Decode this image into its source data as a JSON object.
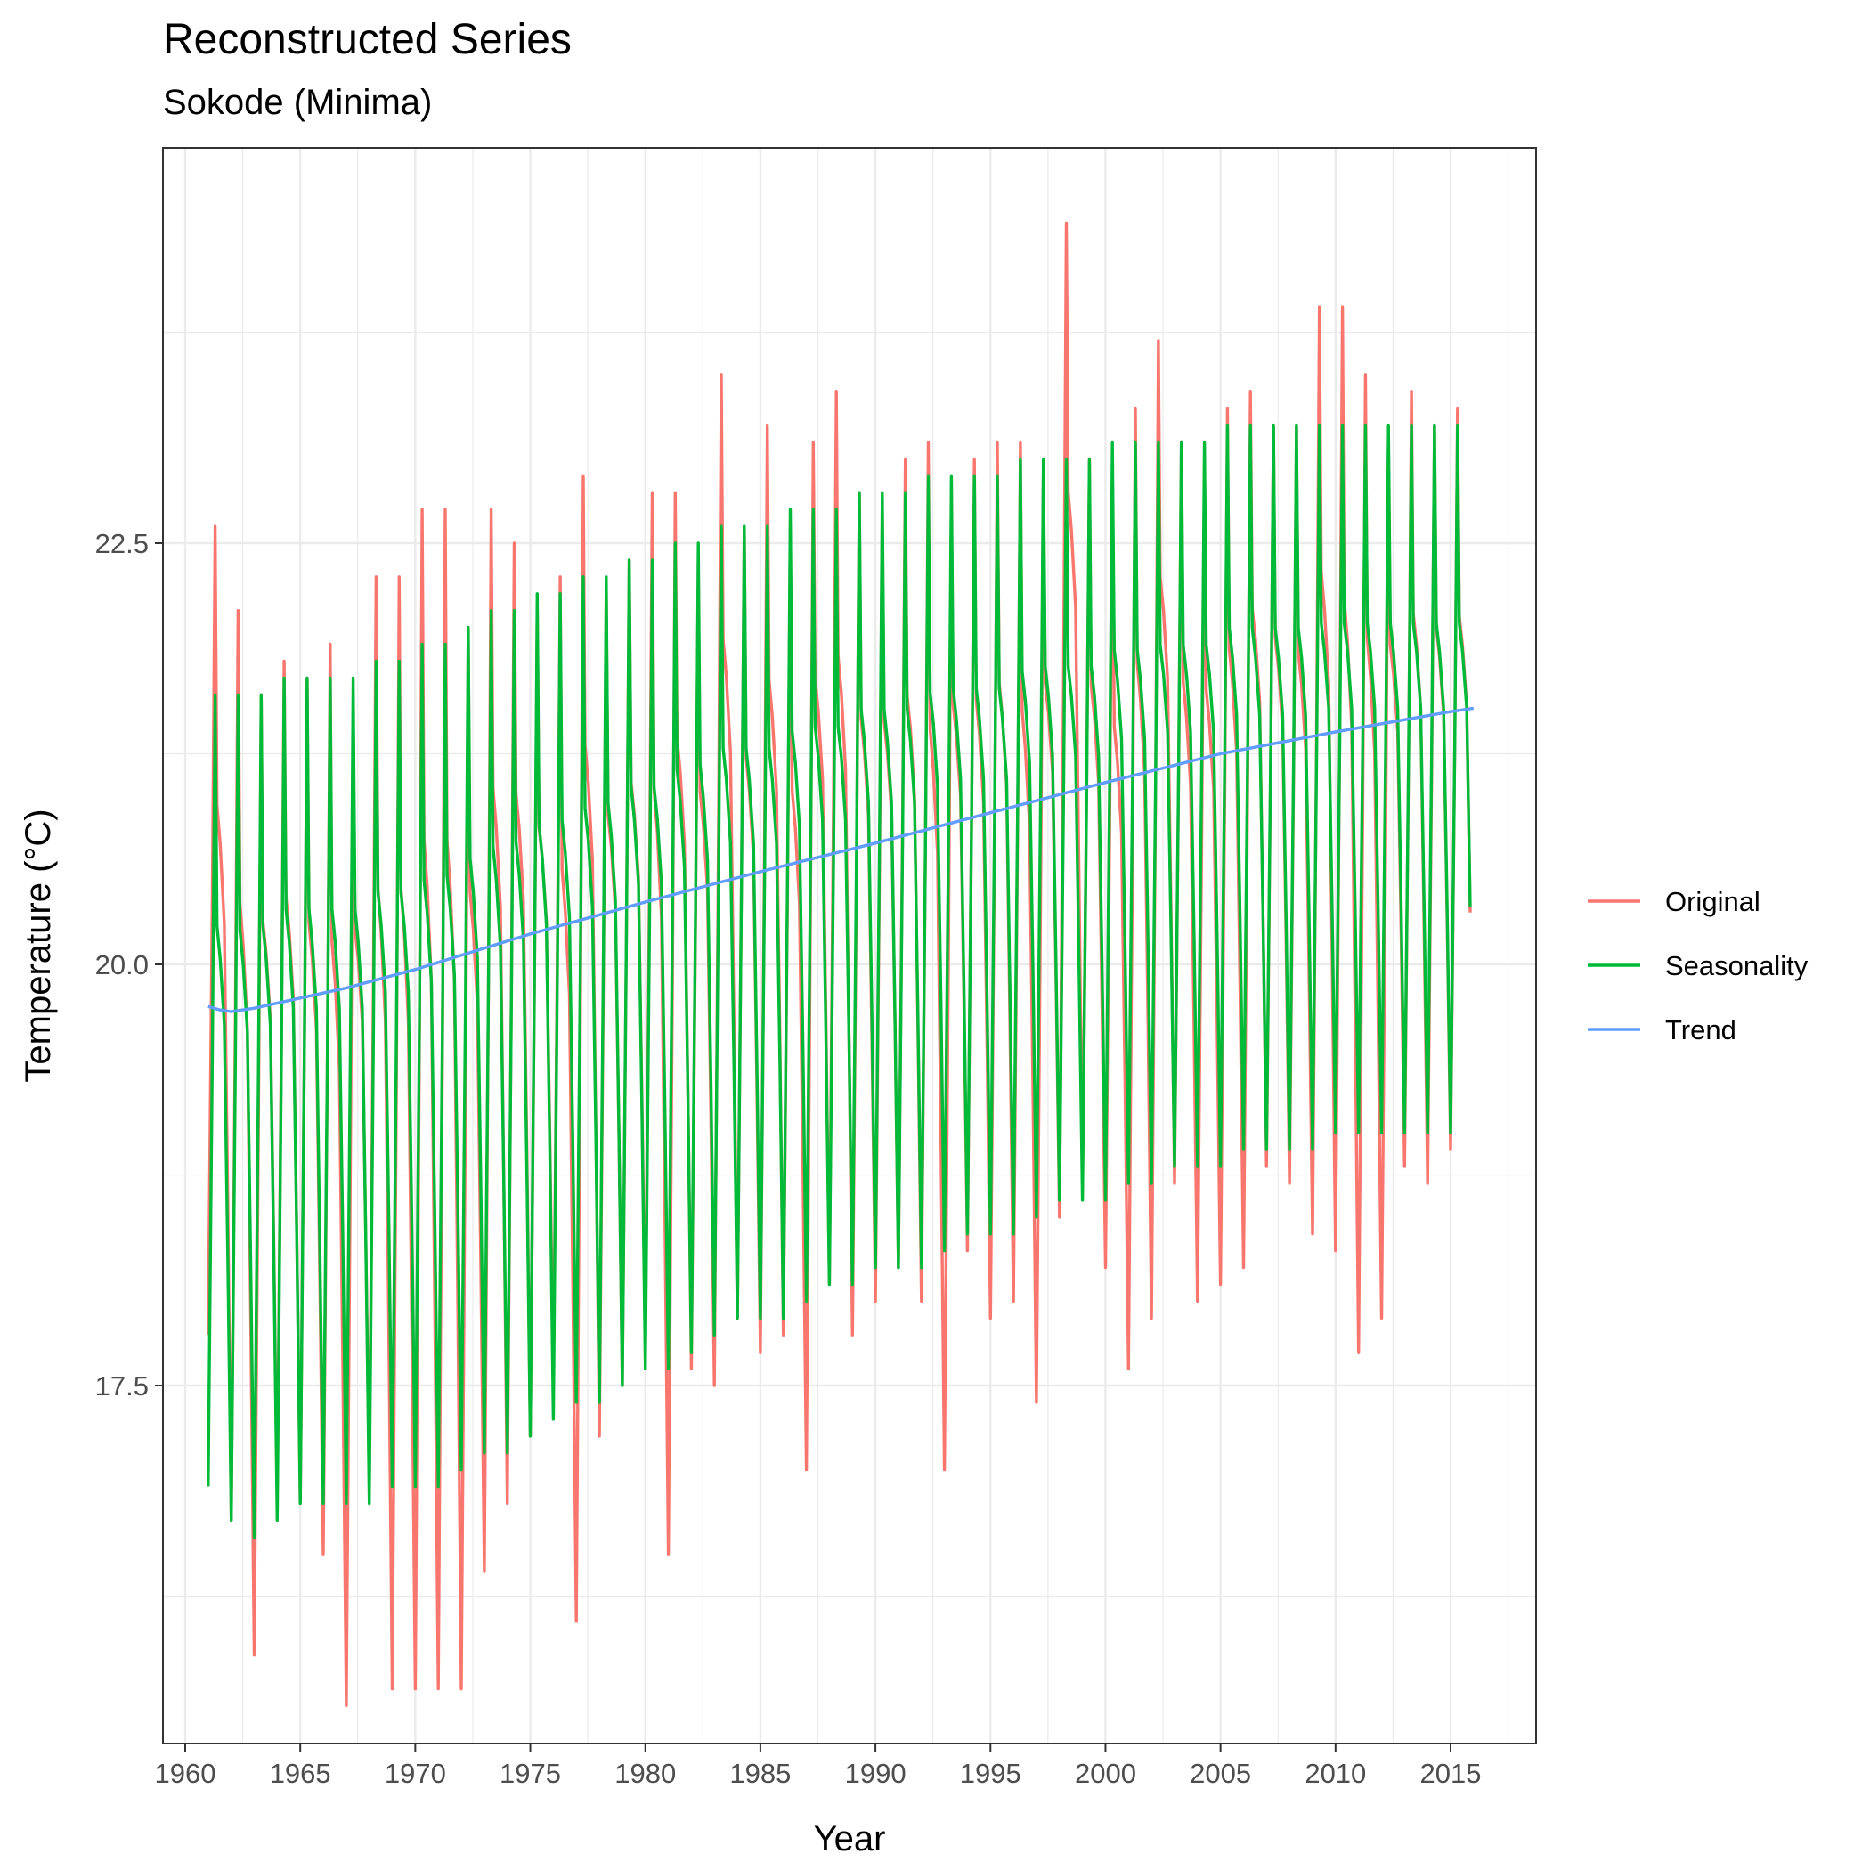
{
  "chart_data": {
    "type": "line",
    "title": "Reconstructed Series",
    "subtitle": "Sokode (Minima)",
    "xlabel": "Year",
    "ylabel": "Temperature (°C)",
    "xlim": [
      1959.3,
      1960.0
    ],
    "ylim": [
      14.8,
      24.5
    ],
    "x_ticks": [
      1960,
      1965,
      1970,
      1975,
      1980,
      1985,
      1990,
      1995,
      2000,
      2005,
      2010,
      2015
    ],
    "x_tick_labels": [
      "1960",
      "1965",
      "1970",
      "1975",
      "1980",
      "1985",
      "1990",
      "1995",
      "2000",
      "2005",
      "2010",
      "2015"
    ],
    "y_ticks": [
      17.5,
      20.0,
      22.5
    ],
    "y_tick_labels": [
      "17.5",
      "20.0",
      "22.5"
    ],
    "grid": true,
    "legend_position": "right",
    "series": [
      {
        "name": "Original",
        "color": "#F8766D",
        "seasonal_min": [
          [
            1961.0,
            17.8
          ],
          [
            1962.0,
            16.7
          ],
          [
            1963.0,
            15.9
          ],
          [
            1964.0,
            16.8
          ],
          [
            1965.0,
            16.8
          ],
          [
            1966.0,
            16.5
          ],
          [
            1967.0,
            15.6
          ],
          [
            1968.0,
            16.9
          ],
          [
            1969.0,
            15.7
          ],
          [
            1970.0,
            15.7
          ],
          [
            1971.0,
            15.7
          ],
          [
            1972.0,
            15.7
          ],
          [
            1973.0,
            16.4
          ],
          [
            1974.0,
            16.8
          ],
          [
            1975.0,
            17.2
          ],
          [
            1976.0,
            17.5
          ],
          [
            1977.0,
            16.1
          ],
          [
            1978.0,
            17.2
          ],
          [
            1979.0,
            17.5
          ],
          [
            1980.0,
            17.7
          ],
          [
            1981.0,
            16.5
          ],
          [
            1982.0,
            17.6
          ],
          [
            1983.0,
            17.5
          ],
          [
            1984.0,
            17.9
          ],
          [
            1985.0,
            17.7
          ],
          [
            1986.0,
            17.8
          ],
          [
            1987.0,
            17.0
          ],
          [
            1988.0,
            18.1
          ],
          [
            1989.0,
            17.8
          ],
          [
            1990.0,
            18.0
          ],
          [
            1991.0,
            18.2
          ],
          [
            1992.0,
            18.0
          ],
          [
            1993.0,
            17.0
          ],
          [
            1994.0,
            18.3
          ],
          [
            1995.0,
            17.9
          ],
          [
            1996.0,
            18.0
          ],
          [
            1997.0,
            17.4
          ],
          [
            1998.0,
            18.5
          ],
          [
            1999.0,
            18.7
          ],
          [
            2000.0,
            18.2
          ],
          [
            2001.0,
            17.6
          ],
          [
            2002.0,
            17.9
          ],
          [
            2003.0,
            18.7
          ],
          [
            2004.0,
            18.0
          ],
          [
            2005.0,
            18.1
          ],
          [
            2006.0,
            18.2
          ],
          [
            2007.0,
            18.8
          ],
          [
            2008.0,
            18.7
          ],
          [
            2009.0,
            18.4
          ],
          [
            2010.0,
            18.3
          ],
          [
            2011.0,
            17.7
          ],
          [
            2012.0,
            17.9
          ],
          [
            2013.0,
            18.8
          ],
          [
            2014.0,
            18.7
          ],
          [
            2015.0,
            18.9
          ]
        ],
        "seasonal_max": [
          [
            1961.3,
            22.6
          ],
          [
            1962.3,
            22.1
          ],
          [
            1963.3,
            21.6
          ],
          [
            1964.3,
            21.8
          ],
          [
            1965.3,
            21.7
          ],
          [
            1966.3,
            21.9
          ],
          [
            1967.3,
            21.5
          ],
          [
            1968.3,
            22.3
          ],
          [
            1969.3,
            22.3
          ],
          [
            1970.3,
            22.7
          ],
          [
            1971.3,
            22.7
          ],
          [
            1972.3,
            22.0
          ],
          [
            1973.3,
            22.7
          ],
          [
            1974.3,
            22.5
          ],
          [
            1975.3,
            22.1
          ],
          [
            1976.3,
            22.3
          ],
          [
            1977.3,
            22.9
          ],
          [
            1978.3,
            22.2
          ],
          [
            1979.3,
            22.4
          ],
          [
            1980.3,
            22.8
          ],
          [
            1981.3,
            22.8
          ],
          [
            1982.3,
            22.4
          ],
          [
            1983.3,
            23.5
          ],
          [
            1984.3,
            22.6
          ],
          [
            1985.3,
            23.2
          ],
          [
            1986.3,
            22.6
          ],
          [
            1987.3,
            23.1
          ],
          [
            1988.3,
            23.4
          ],
          [
            1989.3,
            22.8
          ],
          [
            1990.3,
            22.7
          ],
          [
            1991.3,
            23.0
          ],
          [
            1992.3,
            23.1
          ],
          [
            1993.3,
            22.8
          ],
          [
            1994.3,
            23.0
          ],
          [
            1995.3,
            23.1
          ],
          [
            1996.3,
            23.1
          ],
          [
            1997.3,
            22.9
          ],
          [
            1998.3,
            24.4
          ],
          [
            1999.3,
            23.0
          ],
          [
            2000.3,
            22.9
          ],
          [
            2001.3,
            23.3
          ],
          [
            2002.3,
            23.7
          ],
          [
            2003.3,
            23.1
          ],
          [
            2004.3,
            23.0
          ],
          [
            2005.3,
            23.3
          ],
          [
            2006.3,
            23.4
          ],
          [
            2007.3,
            23.2
          ],
          [
            2008.3,
            23.2
          ],
          [
            2009.3,
            23.9
          ],
          [
            2010.3,
            23.9
          ],
          [
            2011.3,
            23.5
          ],
          [
            2012.3,
            23.1
          ],
          [
            2013.3,
            23.4
          ],
          [
            2014.3,
            23.2
          ],
          [
            2015.3,
            23.3
          ]
        ]
      },
      {
        "name": "Seasonality",
        "color": "#00BA38",
        "seasonal_min": [
          [
            1961.0,
            16.9
          ],
          [
            1962.0,
            16.7
          ],
          [
            1963.0,
            16.6
          ],
          [
            1964.0,
            16.7
          ],
          [
            1965.0,
            16.8
          ],
          [
            1966.0,
            16.8
          ],
          [
            1967.0,
            16.8
          ],
          [
            1968.0,
            16.8
          ],
          [
            1969.0,
            16.9
          ],
          [
            1970.0,
            16.9
          ],
          [
            1971.0,
            16.9
          ],
          [
            1972.0,
            17.0
          ],
          [
            1973.0,
            17.1
          ],
          [
            1974.0,
            17.1
          ],
          [
            1975.0,
            17.2
          ],
          [
            1976.0,
            17.3
          ],
          [
            1977.0,
            17.4
          ],
          [
            1978.0,
            17.4
          ],
          [
            1979.0,
            17.5
          ],
          [
            1980.0,
            17.6
          ],
          [
            1981.0,
            17.6
          ],
          [
            1982.0,
            17.7
          ],
          [
            1983.0,
            17.8
          ],
          [
            1984.0,
            17.9
          ],
          [
            1985.0,
            17.9
          ],
          [
            1986.0,
            17.9
          ],
          [
            1987.0,
            18.0
          ],
          [
            1988.0,
            18.1
          ],
          [
            1989.0,
            18.1
          ],
          [
            1990.0,
            18.2
          ],
          [
            1991.0,
            18.2
          ],
          [
            1992.0,
            18.2
          ],
          [
            1993.0,
            18.3
          ],
          [
            1994.0,
            18.4
          ],
          [
            1995.0,
            18.4
          ],
          [
            1996.0,
            18.4
          ],
          [
            1997.0,
            18.5
          ],
          [
            1998.0,
            18.6
          ],
          [
            1999.0,
            18.6
          ],
          [
            2000.0,
            18.6
          ],
          [
            2001.0,
            18.7
          ],
          [
            2002.0,
            18.7
          ],
          [
            2003.0,
            18.8
          ],
          [
            2004.0,
            18.8
          ],
          [
            2005.0,
            18.8
          ],
          [
            2006.0,
            18.9
          ],
          [
            2007.0,
            18.9
          ],
          [
            2008.0,
            18.9
          ],
          [
            2009.0,
            18.9
          ],
          [
            2010.0,
            19.0
          ],
          [
            2011.0,
            19.0
          ],
          [
            2012.0,
            19.0
          ],
          [
            2013.0,
            19.0
          ],
          [
            2014.0,
            19.0
          ],
          [
            2015.0,
            19.0
          ]
        ],
        "seasonal_max": [
          [
            1961.3,
            21.6
          ],
          [
            1962.3,
            21.6
          ],
          [
            1963.3,
            21.6
          ],
          [
            1964.3,
            21.7
          ],
          [
            1965.3,
            21.7
          ],
          [
            1966.3,
            21.7
          ],
          [
            1967.3,
            21.7
          ],
          [
            1968.3,
            21.8
          ],
          [
            1969.3,
            21.8
          ],
          [
            1970.3,
            21.9
          ],
          [
            1971.3,
            21.9
          ],
          [
            1972.3,
            22.0
          ],
          [
            1973.3,
            22.1
          ],
          [
            1974.3,
            22.1
          ],
          [
            1975.3,
            22.2
          ],
          [
            1976.3,
            22.2
          ],
          [
            1977.3,
            22.3
          ],
          [
            1978.3,
            22.3
          ],
          [
            1979.3,
            22.4
          ],
          [
            1980.3,
            22.4
          ],
          [
            1981.3,
            22.5
          ],
          [
            1982.3,
            22.5
          ],
          [
            1983.3,
            22.6
          ],
          [
            1984.3,
            22.6
          ],
          [
            1985.3,
            22.6
          ],
          [
            1986.3,
            22.7
          ],
          [
            1987.3,
            22.7
          ],
          [
            1988.3,
            22.7
          ],
          [
            1989.3,
            22.8
          ],
          [
            1990.3,
            22.8
          ],
          [
            1991.3,
            22.8
          ],
          [
            1992.3,
            22.9
          ],
          [
            1993.3,
            22.9
          ],
          [
            1994.3,
            22.9
          ],
          [
            1995.3,
            22.9
          ],
          [
            1996.3,
            23.0
          ],
          [
            1997.3,
            23.0
          ],
          [
            1998.3,
            23.0
          ],
          [
            1999.3,
            23.0
          ],
          [
            2000.3,
            23.1
          ],
          [
            2001.3,
            23.1
          ],
          [
            2002.3,
            23.1
          ],
          [
            2003.3,
            23.1
          ],
          [
            2004.3,
            23.1
          ],
          [
            2005.3,
            23.2
          ],
          [
            2006.3,
            23.2
          ],
          [
            2007.3,
            23.2
          ],
          [
            2008.3,
            23.2
          ],
          [
            2009.3,
            23.2
          ],
          [
            2010.3,
            23.2
          ],
          [
            2011.3,
            23.2
          ],
          [
            2012.3,
            23.2
          ],
          [
            2013.3,
            23.2
          ],
          [
            2014.3,
            23.2
          ],
          [
            2015.3,
            23.2
          ]
        ]
      },
      {
        "name": "Trend",
        "color": "#619CFF",
        "x": [
          1961.0,
          1961.5,
          1962.0,
          1963.0,
          1965.0,
          1967.0,
          1970.0,
          1975.0,
          1980.0,
          1985.0,
          1990.0,
          1995.0,
          2000.0,
          2005.0,
          2010.0,
          2015.0,
          2016.0
        ],
        "y": [
          19.75,
          19.73,
          19.72,
          19.74,
          19.8,
          19.86,
          19.97,
          20.18,
          20.37,
          20.55,
          20.72,
          20.9,
          21.08,
          21.25,
          21.38,
          21.5,
          21.52
        ]
      }
    ]
  }
}
